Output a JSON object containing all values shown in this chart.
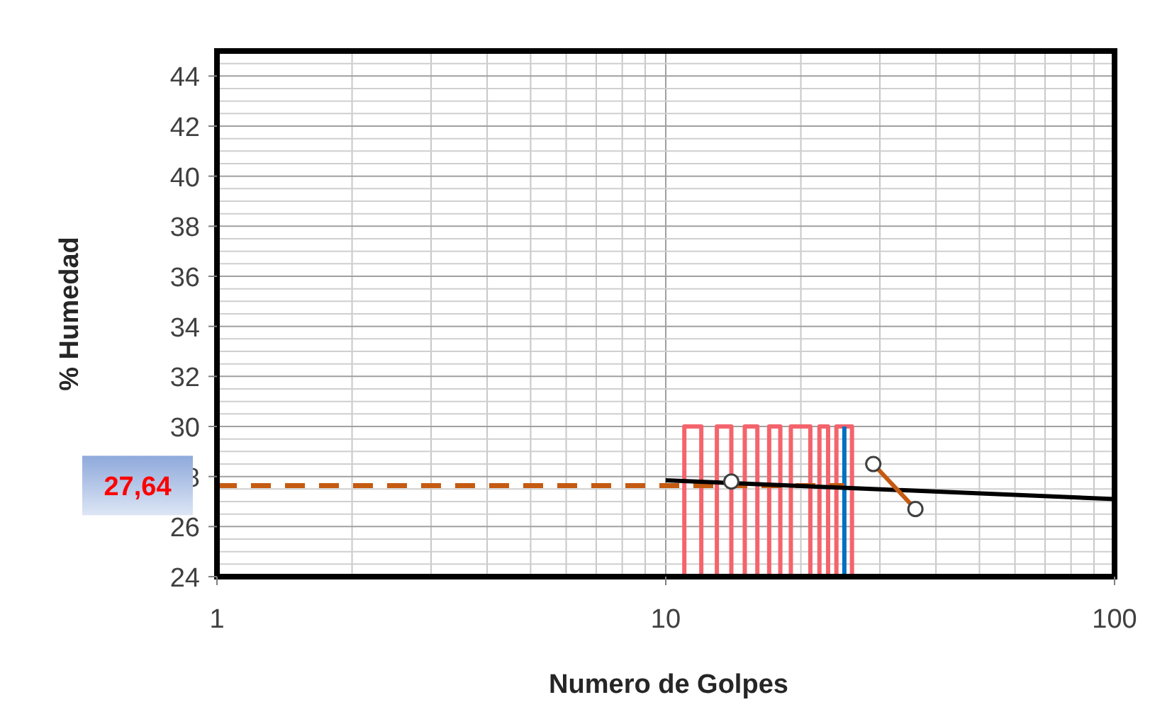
{
  "chart_data": {
    "type": "line",
    "xlabel": "Numero de Golpes",
    "ylabel": "% Humedad",
    "log": "x",
    "xlim": [
      1,
      100
    ],
    "xticks": [
      1,
      10,
      100
    ],
    "ylim": [
      24,
      45
    ],
    "yticks": [
      24,
      26,
      28,
      30,
      32,
      34,
      36,
      38,
      40,
      42,
      44
    ],
    "grid": true,
    "series": [
      {
        "color": "#f4646c",
        "x": [
          11,
          11,
          12,
          12,
          13,
          13,
          14,
          14,
          15,
          15,
          16,
          16,
          17,
          17,
          18,
          18,
          19,
          19,
          21,
          21,
          22,
          22,
          23,
          23,
          24,
          24,
          26,
          26
        ],
        "values": [
          24,
          30,
          30,
          24,
          24,
          30,
          30,
          24,
          24,
          30,
          30,
          24,
          24,
          30,
          30,
          24,
          24,
          30,
          30,
          24,
          24,
          30,
          30,
          24,
          24,
          30,
          30,
          24
        ]
      },
      {
        "color": "#0070c0",
        "x": [
          25,
          25
        ],
        "values": [
          24,
          30
        ]
      },
      {
        "color": "#c55a11",
        "line_style": "dashed",
        "x": [
          1,
          25
        ],
        "values": [
          27.64,
          27.64
        ]
      },
      {
        "color": "#000000",
        "x": [
          10,
          100
        ],
        "values": [
          27.85,
          27.1
        ]
      },
      {
        "color": "#c55a11",
        "x": [
          29,
          36
        ],
        "values": [
          28.5,
          26.7
        ]
      },
      {
        "type": "scatter",
        "color": "#404040",
        "marker": "circle",
        "x": [
          14,
          29,
          36
        ],
        "values": [
          27.8,
          28.5,
          26.7
        ]
      }
    ],
    "annotations": [
      {
        "text": "27,64",
        "x": 1,
        "y": 27.64
      }
    ]
  }
}
